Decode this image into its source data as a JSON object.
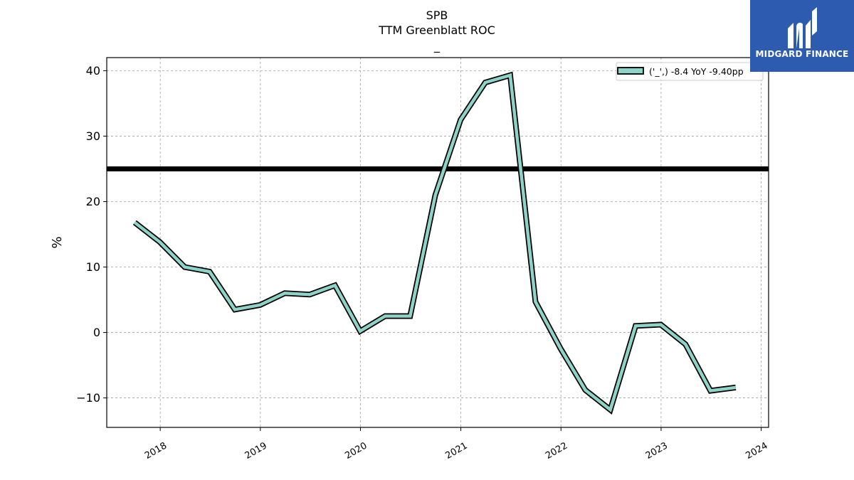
{
  "chart_data": {
    "type": "line",
    "title": "SPB",
    "subtitle": "TTM Greenblatt ROC",
    "subtitle2": "_",
    "ylabel": "%",
    "xlabel": "",
    "ylim": [
      -14.5,
      42
    ],
    "y_ticks": [
      -10,
      0,
      10,
      20,
      30,
      40
    ],
    "y_tick_labels": [
      "−10",
      "0",
      "10",
      "20",
      "30",
      "40"
    ],
    "x_ticks": [
      "2018-01-01",
      "2019-01-01",
      "2020-01-01",
      "2021-01-01",
      "2022-01-01",
      "2023-01-01",
      "2024-01-01"
    ],
    "x_tick_labels": [
      "2018",
      "2019",
      "2020",
      "2021",
      "2022",
      "2023",
      "2024"
    ],
    "x_range": [
      "2017-06-20",
      "2024-01-28"
    ],
    "grid": true,
    "legend_position": "top-right",
    "reference_line": {
      "y": 25,
      "color": "#000000"
    },
    "series": [
      {
        "name": "('_',) -8.4 YoY -9.40pp",
        "color": "#8dd3c7",
        "outline": "#000000",
        "x": [
          "2017-09-30",
          "2017-12-31",
          "2018-03-31",
          "2018-06-30",
          "2018-09-30",
          "2018-12-31",
          "2019-03-31",
          "2019-06-30",
          "2019-09-30",
          "2019-12-31",
          "2020-03-31",
          "2020-06-30",
          "2020-09-30",
          "2020-12-31",
          "2021-03-31",
          "2021-06-30",
          "2021-09-30",
          "2021-12-31",
          "2022-03-31",
          "2022-06-30",
          "2022-09-30",
          "2022-12-31",
          "2023-03-31",
          "2023-06-30",
          "2023-09-30"
        ],
        "values": [
          16.8,
          13.8,
          10.0,
          9.3,
          3.5,
          4.2,
          6.0,
          5.8,
          7.2,
          0.2,
          2.5,
          2.5,
          21.0,
          32.5,
          38.2,
          39.3,
          4.7,
          -2.5,
          -8.8,
          -11.8,
          1.0,
          1.2,
          -1.8,
          -8.9,
          -8.4
        ]
      }
    ]
  },
  "logo": {
    "text": "MIDGARD FINANCE",
    "background": "#2d5bb0"
  }
}
